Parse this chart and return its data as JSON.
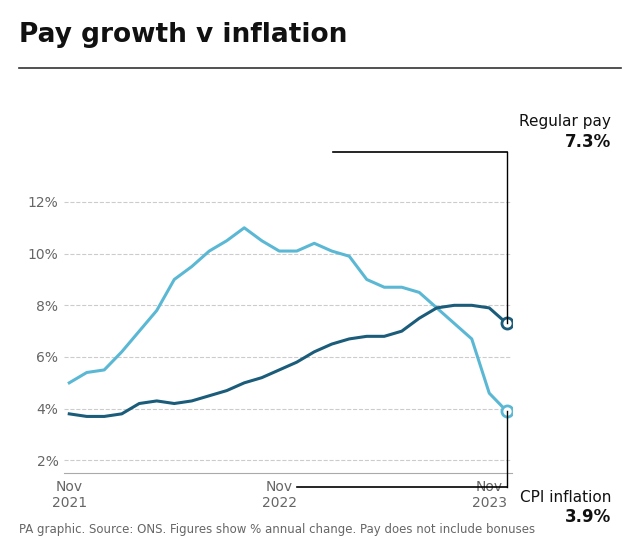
{
  "title": "Pay growth v inflation",
  "subtitle": "PA graphic. Source: ONS. Figures show % annual change. Pay does not include bonuses",
  "ylim": [
    1.5,
    13.5
  ],
  "yticks": [
    2,
    4,
    6,
    8,
    10,
    12
  ],
  "background_color": "#ffffff",
  "regular_pay_label": "Regular pay",
  "regular_pay_value": "7.3%",
  "cpi_label": "CPI inflation",
  "cpi_value": "3.9%",
  "regular_pay_color": "#1a5c7a",
  "cpi_color": "#5bb8d4",
  "annotation_color": "#111111",
  "grid_color": "#cccccc",
  "regular_pay": {
    "x": [
      0,
      1,
      2,
      3,
      4,
      5,
      6,
      7,
      8,
      9,
      10,
      11,
      12,
      13,
      14,
      15,
      16,
      17,
      18,
      19,
      20,
      21,
      22,
      23,
      24,
      25
    ],
    "y": [
      3.8,
      3.7,
      3.7,
      3.8,
      4.2,
      4.3,
      4.2,
      4.3,
      4.5,
      4.7,
      5.0,
      5.2,
      5.5,
      5.8,
      6.2,
      6.5,
      6.7,
      6.8,
      6.8,
      7.0,
      7.5,
      7.9,
      8.0,
      8.0,
      7.9,
      7.3
    ]
  },
  "cpi_inflation": {
    "x": [
      0,
      1,
      2,
      3,
      4,
      5,
      6,
      7,
      8,
      9,
      10,
      11,
      12,
      13,
      14,
      15,
      16,
      17,
      18,
      19,
      20,
      21,
      22,
      23,
      24,
      25
    ],
    "y": [
      5.0,
      5.4,
      5.5,
      6.2,
      7.0,
      7.8,
      9.0,
      9.5,
      10.1,
      10.5,
      11.0,
      10.5,
      10.1,
      10.1,
      10.4,
      10.1,
      9.9,
      9.0,
      8.7,
      8.7,
      8.5,
      7.9,
      7.3,
      6.7,
      4.6,
      3.9
    ]
  },
  "x_tick_positions": [
    0,
    12,
    24
  ],
  "x_tick_labels": [
    "Nov\n2021",
    "Nov\n2022",
    "Nov\n2023"
  ],
  "title_fontsize": 19,
  "tick_fontsize": 10,
  "annotation_fontsize": 11,
  "source_fontsize": 8.5
}
